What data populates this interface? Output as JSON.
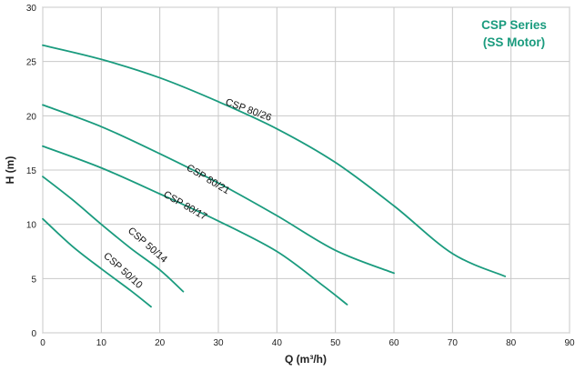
{
  "chart_data": {
    "type": "line",
    "title": "CSP Series",
    "subtitle": "(SS Motor)",
    "xlabel": "Q (m³/h)",
    "ylabel": "H (m)",
    "xlim": [
      0,
      90
    ],
    "ylim": [
      0,
      30
    ],
    "x_ticks": [
      "0",
      "10",
      "20",
      "30",
      "40",
      "50",
      "60",
      "70",
      "80",
      "90"
    ],
    "y_ticks": [
      "0",
      "5",
      "10",
      "15",
      "20",
      "25",
      "30"
    ],
    "grid": true,
    "curve_color": "#1a9b7e",
    "title_color": "#1a9b7e",
    "series": [
      {
        "name": "CSP 80/26",
        "points": [
          [
            0,
            26.5
          ],
          [
            10,
            25.2
          ],
          [
            20,
            23.5
          ],
          [
            30,
            21.3
          ],
          [
            40,
            18.8
          ],
          [
            50,
            15.7
          ],
          [
            60,
            11.7
          ],
          [
            70,
            7.3
          ],
          [
            79,
            5.2
          ]
        ]
      },
      {
        "name": "CSP 80/21",
        "points": [
          [
            0,
            21.0
          ],
          [
            10,
            19.0
          ],
          [
            20,
            16.5
          ],
          [
            30,
            13.8
          ],
          [
            40,
            10.8
          ],
          [
            50,
            7.6
          ],
          [
            60,
            5.5
          ]
        ]
      },
      {
        "name": "CSP 80/17",
        "points": [
          [
            0,
            17.2
          ],
          [
            10,
            15.2
          ],
          [
            20,
            12.8
          ],
          [
            30,
            10.3
          ],
          [
            40,
            7.5
          ],
          [
            48,
            4.3
          ],
          [
            52,
            2.6
          ]
        ]
      },
      {
        "name": "CSP 50/14",
        "points": [
          [
            0,
            14.4
          ],
          [
            5,
            12.3
          ],
          [
            10,
            10.0
          ],
          [
            15,
            7.8
          ],
          [
            20,
            5.8
          ],
          [
            24,
            3.8
          ]
        ]
      },
      {
        "name": "CSP 50/10",
        "points": [
          [
            0,
            10.5
          ],
          [
            5,
            8.0
          ],
          [
            10,
            5.9
          ],
          [
            15,
            3.9
          ],
          [
            18.5,
            2.4
          ]
        ]
      }
    ]
  }
}
